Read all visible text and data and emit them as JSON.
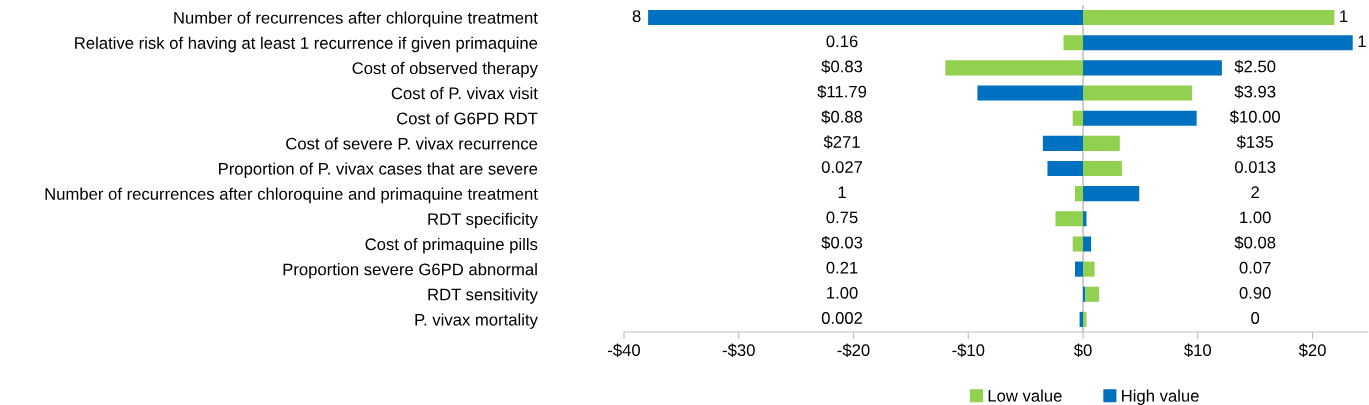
{
  "chart_data": {
    "type": "bar",
    "orientation": "horizontal",
    "categories": [
      "Number of recurrences after chlorquine treatment",
      "Relative risk of having at least 1 recurrence if given primaquine",
      "Cost of observed therapy",
      "Cost of P. vivax visit",
      "Cost of G6PD RDT",
      "Cost of severe P. vivax recurrence",
      "Proportion of P. vivax cases that are severe",
      "Number of recurrences after chloroquine and primaquine treatment",
      "RDT specificity",
      "Cost of primaquine pills",
      "Proportion severe G6PD abnormal",
      "RDT sensitivity",
      "P. vivax mortality"
    ],
    "series": [
      {
        "name": "High value",
        "color": "#0070c0",
        "values": [
          -37.9,
          23.5,
          12.1,
          -9.2,
          9.9,
          -3.5,
          -3.1,
          4.9,
          0.3,
          0.7,
          -0.7,
          0.2,
          -0.3
        ]
      },
      {
        "name": "Low value",
        "color": "#92d050",
        "values": [
          21.9,
          -1.7,
          -12.0,
          9.5,
          -0.9,
          3.2,
          3.4,
          -0.7,
          -2.4,
          -0.9,
          1.0,
          1.2,
          0.3
        ]
      }
    ],
    "stacked": true,
    "xlim": [
      -40,
      24.8
    ],
    "xticks": [
      {
        "value": -40,
        "label": "-$40"
      },
      {
        "value": -30,
        "label": "-$30"
      },
      {
        "value": -20,
        "label": "-$20"
      },
      {
        "value": -10,
        "label": "-$10"
      },
      {
        "value": 0,
        "label": "$0"
      },
      {
        "value": 10,
        "label": "$10"
      },
      {
        "value": 20,
        "label": "$20"
      }
    ],
    "ref_lines": [
      {
        "axis": "x",
        "value": 0,
        "color": "#a6a6a6"
      }
    ],
    "grid": false,
    "legend": "bottom",
    "annotations": [
      "8",
      "1",
      "0.16",
      "1",
      "$0.83",
      "$2.50",
      "$11.79",
      "$3.93",
      "$0.88",
      "$10.00",
      "$271",
      "$135",
      "0.027",
      "0.013",
      "1",
      "2",
      "0.75",
      "1.00",
      "$0.03",
      "$0.08",
      "0.21",
      "0.07",
      "1.00",
      "0.90",
      "0.002",
      "0"
    ]
  }
}
